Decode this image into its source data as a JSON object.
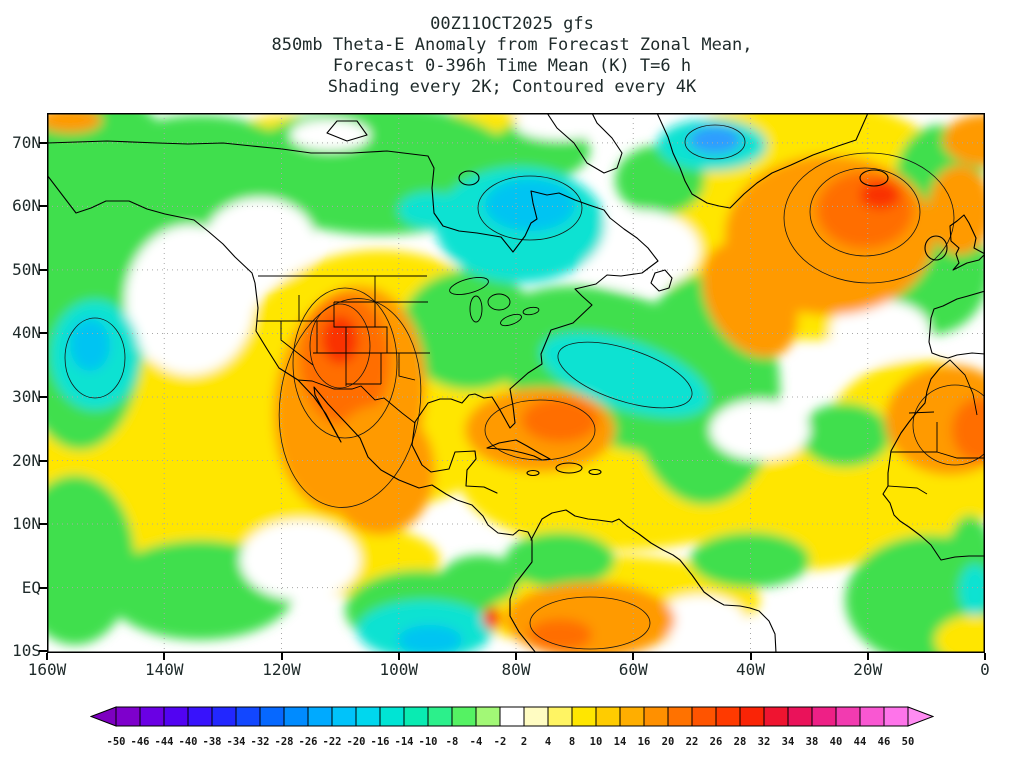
{
  "title": {
    "lines": [
      "00Z11OCT2025 gfs",
      "850mb Theta-E Anomaly from Forecast Zonal Mean,",
      "Forecast 0-396h Time Mean (K) T=6 h",
      "Shading every 2K; Contoured every 4K"
    ]
  },
  "axes": {
    "lat_labels": [
      "70N",
      "60N",
      "50N",
      "40N",
      "30N",
      "20N",
      "10N",
      "EQ",
      "10S"
    ],
    "lat_values": [
      70,
      60,
      50,
      40,
      30,
      20,
      10,
      0,
      -10
    ],
    "lon_labels": [
      "160W",
      "140W",
      "120W",
      "100W",
      "80W",
      "60W",
      "40W",
      "20W",
      "0"
    ],
    "lon_values": [
      160,
      140,
      120,
      100,
      80,
      60,
      40,
      20,
      0
    ],
    "grid_lats": [
      70,
      60,
      50,
      40,
      30,
      20,
      10,
      0
    ],
    "grid_lons": [
      140,
      120,
      100,
      80,
      60,
      40,
      20
    ]
  },
  "colorbar": {
    "labels": [
      "-50",
      "-46",
      "-44",
      "-40",
      "-38",
      "-34",
      "-32",
      "-28",
      "-26",
      "-22",
      "-20",
      "-16",
      "-14",
      "-10",
      "-8",
      "-4",
      "-2",
      "2",
      "4",
      "8",
      "10",
      "14",
      "16",
      "20",
      "22",
      "26",
      "28",
      "32",
      "34",
      "38",
      "40",
      "44",
      "46",
      "50"
    ],
    "segment_colors": [
      "#7e00cc",
      "#6a00e4",
      "#5203f2",
      "#3812fc",
      "#2227ff",
      "#1247ff",
      "#0668ff",
      "#008bff",
      "#00aaff",
      "#00c3fa",
      "#00d7ee",
      "#00e4d4",
      "#09ebb2",
      "#2cf08b",
      "#55f263",
      "#a2f876",
      "#ffffff",
      "#fffcc2",
      "#fff463",
      "#ffe600",
      "#ffcc00",
      "#ffae00",
      "#ff9000",
      "#ff7200",
      "#ff5400",
      "#ff3a00",
      "#fa2406",
      "#ef1430",
      "#ea125a",
      "#ee2086",
      "#f23bb0",
      "#f957d2",
      "#fe74ea"
    ],
    "left_arrow_color": "#7d00c0",
    "right_arrow_color": "#ff8cf2"
  },
  "palette": {
    "yellow": "#ffe600",
    "green": "#3fdf4e",
    "white": "#ffffff",
    "cyan": "#0fe2d2",
    "deepcyan": "#00c4f2",
    "blue": "#2f9dff",
    "orange": "#ff9a00",
    "deeporange": "#ff6e00",
    "red": "#fa3000"
  },
  "chart_data": {
    "type": "heatmap",
    "title": "850mb Theta-E Anomaly from Forecast Zonal Mean",
    "subtitle": "Forecast 0-396h Time Mean (K) T=6 h",
    "model": "gfs",
    "init_time": "00Z11OCT2025",
    "units": "K",
    "shading_interval_K": 2,
    "contour_interval_K": 4,
    "lon_range": [
      "160W",
      "0"
    ],
    "lat_range": [
      "10S",
      "75N"
    ],
    "colorbar_values": [
      -50,
      -46,
      -44,
      -40,
      -38,
      -34,
      -32,
      -28,
      -26,
      -22,
      -20,
      -16,
      -14,
      -10,
      -8,
      -4,
      -2,
      2,
      4,
      8,
      10,
      14,
      16,
      20,
      22,
      26,
      28,
      32,
      34,
      38,
      40,
      44,
      46,
      50
    ],
    "legend_position": "bottom",
    "grid": "dotted lat/lon graticule",
    "anomaly_features": [
      {
        "region": "Western US / Rockies / Mexico",
        "sign": "positive",
        "approx_peak_K": 30
      },
      {
        "region": "North Atlantic between Greenland and Norway",
        "sign": "positive",
        "approx_peak_K": 34
      },
      {
        "region": "West Africa / Sahara",
        "sign": "positive",
        "approx_peak_K": 26
      },
      {
        "region": "Caribbean / western subtropical Atlantic",
        "sign": "positive",
        "approx_peak_K": 18
      },
      {
        "region": "Amazon / equatorial South America",
        "sign": "positive",
        "approx_peak_K": 20
      },
      {
        "region": "Eastern Canada / Quebec-Hudson Bay",
        "sign": "negative",
        "approx_peak_K": -14
      },
      {
        "region": "Denmark Strait southeast of Greenland",
        "sign": "negative",
        "approx_peak_K": -22
      },
      {
        "region": "Central mid-latitude Atlantic band",
        "sign": "negative",
        "approx_peak_K": -10
      },
      {
        "region": "Eastern North Pacific",
        "sign": "negative",
        "approx_peak_K": -12
      },
      {
        "region": "Equatorial east Pacific",
        "sign": "negative",
        "approx_peak_K": -12
      }
    ]
  },
  "field_render": {
    "blobs": [
      [
        183,
        337,
        190,
        100,
        0,
        "yellow"
      ],
      [
        103,
        367,
        130,
        80,
        0,
        "yellow"
      ],
      [
        333,
        267,
        150,
        130,
        0,
        "yellow"
      ],
      [
        573,
        367,
        160,
        70,
        0,
        "yellow"
      ],
      [
        753,
        387,
        130,
        70,
        0,
        "yellow"
      ],
      [
        763,
        107,
        170,
        120,
        0,
        "yellow"
      ],
      [
        873,
        337,
        100,
        90,
        0,
        "yellow"
      ],
      [
        553,
        487,
        160,
        45,
        0,
        "yellow"
      ],
      [
        303,
        447,
        90,
        35,
        0,
        "yellow"
      ],
      [
        43,
        22,
        70,
        28,
        0,
        "yellow"
      ],
      [
        243,
        22,
        55,
        20,
        0,
        "yellow"
      ],
      [
        433,
        12,
        45,
        16,
        0,
        "yellow"
      ],
      [
        700,
        15,
        50,
        18,
        0,
        "yellow"
      ],
      [
        53,
        77,
        85,
        95,
        0,
        "green"
      ],
      [
        33,
        217,
        65,
        120,
        0,
        "green"
      ],
      [
        28,
        447,
        60,
        85,
        0,
        "green"
      ],
      [
        153,
        477,
        95,
        50,
        0,
        "green"
      ],
      [
        153,
        87,
        125,
        85,
        0,
        "green"
      ],
      [
        333,
        57,
        140,
        65,
        0,
        "green"
      ],
      [
        423,
        217,
        70,
        60,
        0,
        "green"
      ],
      [
        573,
        257,
        135,
        75,
        20,
        "green"
      ],
      [
        658,
        277,
        75,
        115,
        0,
        "green"
      ],
      [
        883,
        157,
        60,
        65,
        0,
        "green"
      ],
      [
        893,
        67,
        45,
        55,
        0,
        "green"
      ],
      [
        883,
        487,
        85,
        65,
        0,
        "green"
      ],
      [
        923,
        457,
        25,
        55,
        0,
        "green"
      ],
      [
        703,
        447,
        60,
        28,
        0,
        "green"
      ],
      [
        513,
        447,
        55,
        28,
        0,
        "green"
      ],
      [
        613,
        67,
        45,
        35,
        0,
        "green"
      ],
      [
        373,
        497,
        75,
        40,
        0,
        "green"
      ],
      [
        798,
        322,
        45,
        32,
        0,
        "green"
      ],
      [
        433,
        467,
        40,
        25,
        0,
        "green"
      ],
      [
        493,
        37,
        50,
        30,
        0,
        "green"
      ],
      [
        143,
        187,
        65,
        75,
        0,
        "white"
      ],
      [
        213,
        127,
        55,
        42,
        0,
        "white"
      ],
      [
        593,
        137,
        60,
        40,
        0,
        "white"
      ],
      [
        713,
        317,
        50,
        30,
        0,
        "white"
      ],
      [
        833,
        217,
        50,
        30,
        0,
        "white"
      ],
      [
        253,
        447,
        60,
        40,
        0,
        "white"
      ],
      [
        653,
        507,
        45,
        25,
        0,
        "white"
      ],
      [
        283,
        22,
        40,
        16,
        0,
        "white"
      ],
      [
        513,
        12,
        45,
        15,
        0,
        "white"
      ],
      [
        928,
        527,
        40,
        25,
        0,
        "yellow"
      ],
      [
        473,
        112,
        85,
        58,
        0,
        "cyan"
      ],
      [
        483,
        92,
        45,
        26,
        0,
        "deepcyan"
      ],
      [
        665,
        32,
        55,
        26,
        0,
        "cyan"
      ],
      [
        668,
        27,
        26,
        14,
        0,
        "blue"
      ],
      [
        578,
        262,
        88,
        34,
        18,
        "cyan"
      ],
      [
        48,
        242,
        45,
        55,
        0,
        "cyan"
      ],
      [
        43,
        232,
        20,
        26,
        0,
        "deepcyan"
      ],
      [
        378,
        517,
        68,
        30,
        0,
        "cyan"
      ],
      [
        383,
        527,
        32,
        15,
        0,
        "deepcyan"
      ],
      [
        853,
        142,
        20,
        16,
        0,
        "cyan"
      ],
      [
        383,
        97,
        32,
        18,
        0,
        "cyan"
      ],
      [
        928,
        477,
        16,
        26,
        0,
        "cyan"
      ],
      [
        303,
        287,
        75,
        115,
        8,
        "orange"
      ],
      [
        298,
        247,
        45,
        65,
        0,
        "deeporange"
      ],
      [
        293,
        227,
        18,
        24,
        0,
        "red"
      ],
      [
        333,
        357,
        55,
        65,
        0,
        "orange"
      ],
      [
        493,
        317,
        75,
        42,
        0,
        "orange"
      ],
      [
        513,
        307,
        38,
        22,
        0,
        "deeporange"
      ],
      [
        783,
        122,
        105,
        80,
        0,
        "orange"
      ],
      [
        818,
        97,
        48,
        38,
        0,
        "deeporange"
      ],
      [
        833,
        82,
        20,
        14,
        0,
        "red"
      ],
      [
        703,
        187,
        42,
        62,
        -30,
        "orange"
      ],
      [
        913,
        97,
        32,
        45,
        0,
        "orange"
      ],
      [
        903,
        307,
        65,
        55,
        0,
        "orange"
      ],
      [
        933,
        317,
        28,
        32,
        0,
        "deeporange"
      ],
      [
        543,
        507,
        85,
        38,
        0,
        "orange"
      ],
      [
        513,
        522,
        32,
        16,
        0,
        "deeporange"
      ],
      [
        445,
        505,
        9,
        11,
        0,
        "red"
      ],
      [
        938,
        27,
        42,
        26,
        0,
        "orange"
      ],
      [
        23,
        7,
        32,
        13,
        0,
        "orange"
      ]
    ],
    "contour_rings": [
      [
        293,
        233,
        30,
        42,
        0
      ],
      [
        298,
        250,
        52,
        75,
        0
      ],
      [
        303,
        290,
        70,
        105,
        8
      ],
      [
        818,
        99,
        55,
        44,
        0
      ],
      [
        822,
        105,
        85,
        65,
        0
      ],
      [
        483,
        95,
        52,
        32,
        0
      ],
      [
        578,
        262,
        70,
        26,
        18
      ],
      [
        908,
        312,
        42,
        40,
        0
      ],
      [
        543,
        510,
        60,
        26,
        0
      ],
      [
        668,
        29,
        30,
        17,
        0
      ],
      [
        48,
        245,
        30,
        40,
        0
      ],
      [
        493,
        317,
        55,
        30,
        0
      ]
    ]
  }
}
